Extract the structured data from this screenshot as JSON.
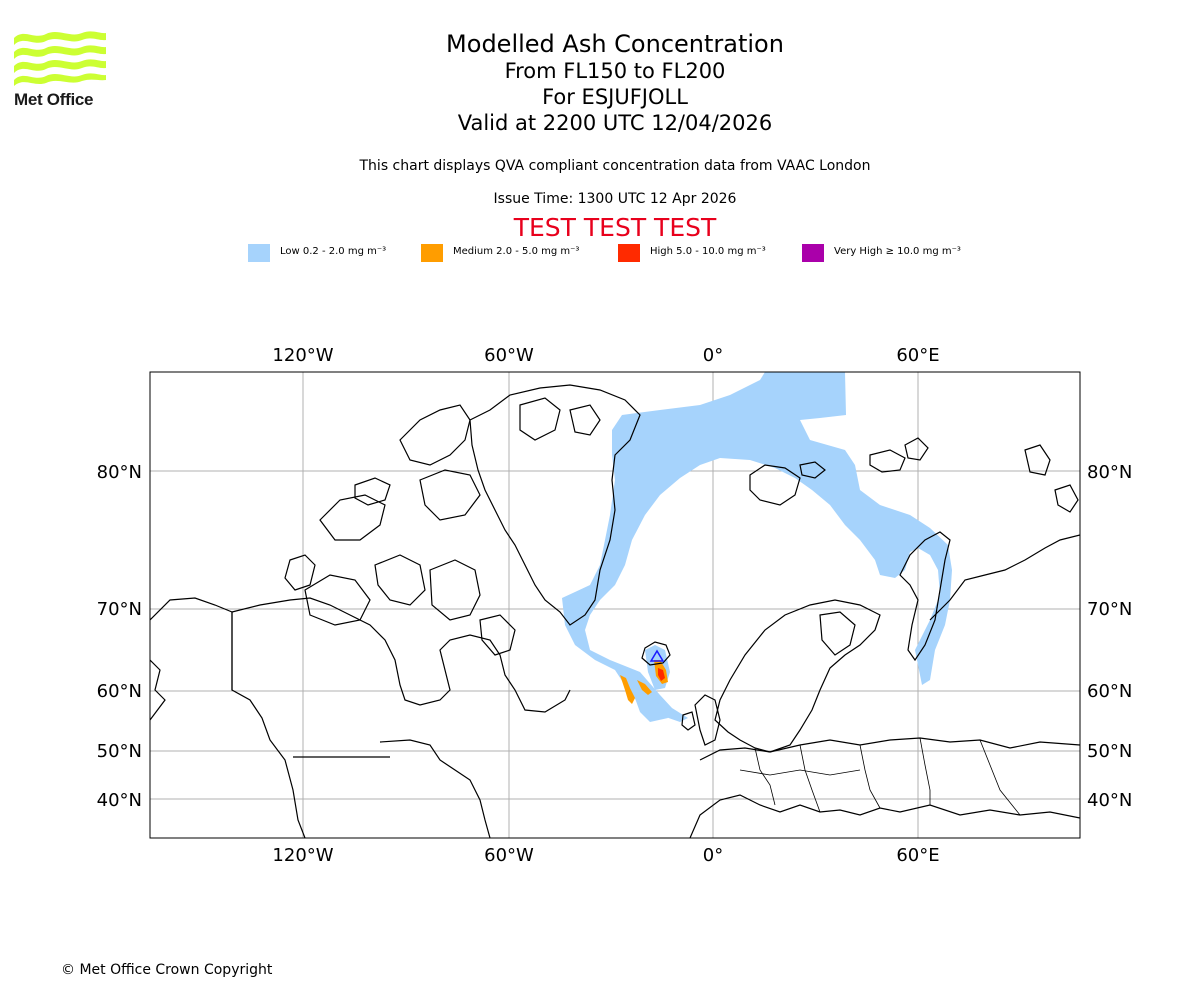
{
  "logo": {
    "text": "Met Office",
    "icon": "met-office-wave-logo",
    "color": "#ccff33"
  },
  "title": "Modelled Ash Concentration",
  "subtitle_levels": "From FL150 to FL200",
  "subtitle_volcano": "For ESJUFJOLL",
  "valid_time": "Valid at 2200 UTC 12/04/2026",
  "disclaimer": "This chart displays QVA compliant concentration data from VAAC London",
  "issue_time": "Issue Time: 1300 UTC 12 Apr 2026",
  "test_banner": "TEST TEST TEST",
  "legend": [
    {
      "label": "Low 0.2 - 2.0 mg m⁻³",
      "color": "#a6d3fc"
    },
    {
      "label": "Medium 2.0 - 5.0 mg m⁻³",
      "color": "#ff9d00"
    },
    {
      "label": "High 5.0 - 10.0 mg m⁻³",
      "color": "#ff2a00"
    },
    {
      "label": "Very High ≥ 10.0 mg m⁻³",
      "color": "#aa00aa"
    }
  ],
  "map": {
    "longitude_labels": [
      "120°W",
      "60°W",
      "0°",
      "60°E"
    ],
    "latitude_labels": [
      "80°N",
      "70°N",
      "60°N",
      "50°N",
      "40°N"
    ],
    "gridlines": true
  },
  "copyright": "© Met Office Crown Copyright"
}
